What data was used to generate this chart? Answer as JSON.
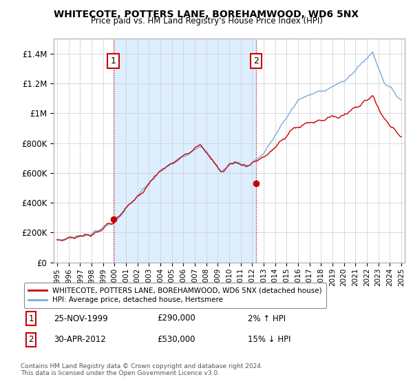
{
  "title": "WHITECOTE, POTTERS LANE, BOREHAMWOOD, WD6 5NX",
  "subtitle": "Price paid vs. HM Land Registry's House Price Index (HPI)",
  "ylim": [
    0,
    1500000
  ],
  "yticks": [
    0,
    200000,
    400000,
    600000,
    800000,
    1000000,
    1200000,
    1400000
  ],
  "ytick_labels": [
    "£0",
    "£200K",
    "£400K",
    "£600K",
    "£800K",
    "£1M",
    "£1.2M",
    "£1.4M"
  ],
  "x_start_year": 1995,
  "x_end_year": 2025,
  "sale1_year": 1999.9,
  "sale1_price": 290000,
  "sale1_label": "1",
  "sale1_date": "25-NOV-1999",
  "sale1_hpi_diff": "2% ↑ HPI",
  "sale2_year": 2012.33,
  "sale2_price": 530000,
  "sale2_label": "2",
  "sale2_date": "30-APR-2012",
  "sale2_hpi_diff": "15% ↓ HPI",
  "red_line_color": "#cc0000",
  "blue_line_color": "#7aaadd",
  "shade_color": "#ddeeff",
  "legend_label_red": "WHITECOTE, POTTERS LANE, BOREHAMWOOD, WD6 5NX (detached house)",
  "legend_label_blue": "HPI: Average price, detached house, Hertsmere",
  "footnote": "Contains HM Land Registry data © Crown copyright and database right 2024.\nThis data is licensed under the Open Government Licence v3.0.",
  "background_color": "#ffffff",
  "grid_color": "#cccccc"
}
